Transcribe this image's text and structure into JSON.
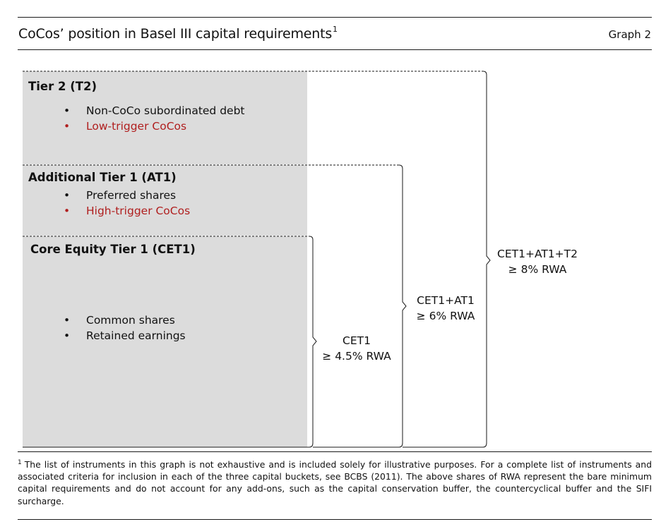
{
  "header": {
    "title": "CoCos’ position in Basel III capital requirements",
    "title_footnote_mark": "1",
    "graph_label": "Graph 2"
  },
  "tiers": [
    {
      "heading": "Tier 2  (T2)",
      "items": [
        {
          "text": "Non-CoCo subordinated debt",
          "highlight": false
        },
        {
          "text": "Low-trigger CoCos",
          "highlight": true
        }
      ]
    },
    {
      "heading": "Additional Tier 1 (AT1)",
      "items": [
        {
          "text": "Preferred shares",
          "highlight": false
        },
        {
          "text": "High-trigger CoCos",
          "highlight": true
        }
      ]
    },
    {
      "heading": "Core Equity Tier 1 (CET1)",
      "items": [
        {
          "text": "Common shares",
          "highlight": false
        },
        {
          "text": "Retained earnings",
          "highlight": false
        }
      ]
    }
  ],
  "requirements": [
    {
      "line1": "CET1",
      "line2": "≥ 4.5% RWA"
    },
    {
      "line1": "CET1+AT1",
      "line2": "≥ 6% RWA"
    },
    {
      "line1": "CET1+AT1+T2",
      "line2": "≥ 8% RWA"
    }
  ],
  "footnote": {
    "mark": "1",
    "text": "The list of instruments in this graph is not exhaustive and is included solely for illustrative purposes. For a complete list of instruments and associated criteria for inclusion in each of the three capital buckets, see BCBS (2011). The above shares of RWA represent the bare minimum capital requirements and do not account for any add-ons, such as the capital conservation buffer, the countercyclical buffer and the SIFI surcharge."
  },
  "colors": {
    "box_fill": "#dcdcdc",
    "highlight_text": "#b01e1e",
    "line": "#1a1a1a"
  }
}
